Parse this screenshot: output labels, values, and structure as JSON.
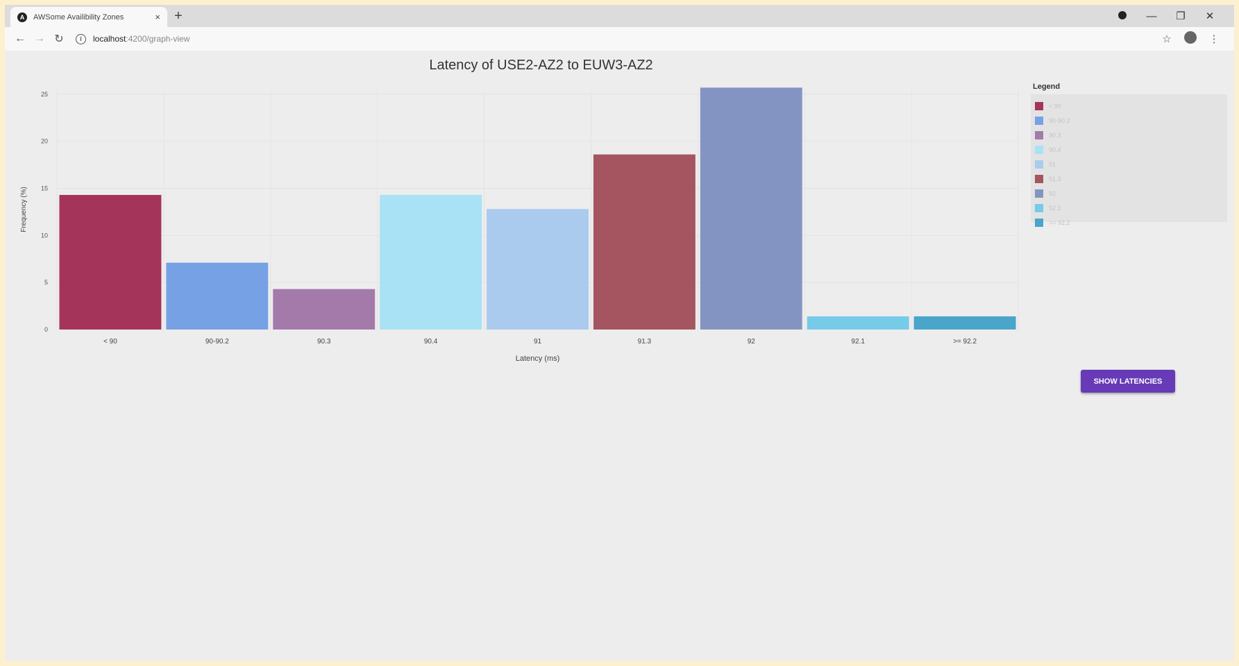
{
  "browser": {
    "tab_title": "AWSome Availibility Zones",
    "tab_favicon": "A",
    "tab_close": "×",
    "new_tab": "+",
    "url_host": "localhost",
    "url_path": ":4200/graph-view",
    "icons": {
      "back": "back-arrow-icon",
      "forward": "forward-arrow-icon",
      "reload": "reload-icon",
      "info": "site-info-icon",
      "bookmark": "star-icon",
      "profile": "profile-icon",
      "menu": "kebab-menu-icon",
      "record": "record-icon",
      "minimize": "minimize-icon",
      "restore": "restore-icon",
      "close": "close-window-icon"
    },
    "glyphs": {
      "back": "←",
      "forward": "→",
      "reload": "↻",
      "info": "i",
      "bookmark": "☆",
      "menu": "⋮",
      "minimize": "—",
      "restore": "❐",
      "close": "✕"
    }
  },
  "chart_data": {
    "type": "bar",
    "title": "Latency of USE2-AZ2 to EUW3-AZ2",
    "xlabel": "Latency (ms)",
    "ylabel": "Frequency (%)",
    "ylim": [
      0,
      25.5
    ],
    "yticks": [
      0,
      5,
      10,
      15,
      20,
      25
    ],
    "grid": true,
    "legend_placement": "right",
    "categories": [
      "< 90",
      "90-90.2",
      "90.3",
      "90.4",
      "91",
      "91.3",
      "92",
      "92.1",
      ">= 92.2"
    ],
    "values": [
      14.3,
      7.1,
      4.3,
      14.3,
      12.8,
      18.6,
      25.7,
      1.4,
      1.4
    ],
    "colors": [
      "#a5345a",
      "#77a1e5",
      "#a47aab",
      "#a9e1f5",
      "#aacbee",
      "#a4555f",
      "#8494c2",
      "#76cbe8",
      "#49a5c9"
    ]
  },
  "legend": {
    "title": "Legend",
    "items": [
      "< 90",
      "90-90.2",
      "90.3",
      "90.4",
      "91",
      "91.3",
      "92",
      "92.1",
      ">= 92.2"
    ]
  },
  "actions": {
    "show_latencies": "SHOW LATENCIES"
  }
}
